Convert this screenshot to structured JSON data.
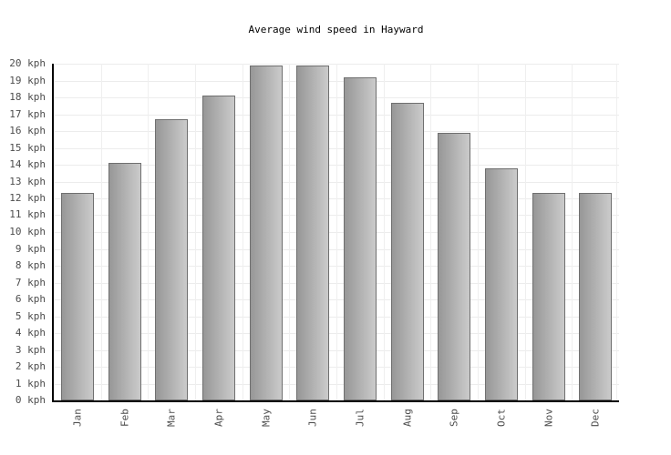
{
  "title": "Average wind speed in Hayward",
  "chart_data": {
    "type": "bar",
    "title": "Average wind speed in Hayward",
    "xlabel": "",
    "ylabel": "",
    "unit": "kph",
    "categories": [
      "Jan",
      "Feb",
      "Mar",
      "Apr",
      "May",
      "Jun",
      "Jul",
      "Aug",
      "Sep",
      "Oct",
      "Nov",
      "Dec"
    ],
    "values": [
      12.3,
      14.1,
      16.7,
      18.1,
      19.9,
      19.9,
      19.2,
      17.7,
      15.9,
      13.8,
      12.3,
      12.3
    ],
    "ylim": [
      0,
      20
    ],
    "ytick_step": 1,
    "yticks": [
      "0 kph",
      "1 kph",
      "2 kph",
      "3 kph",
      "4 kph",
      "5 kph",
      "6 kph",
      "7 kph",
      "8 kph",
      "9 kph",
      "10 kph",
      "11 kph",
      "12 kph",
      "13 kph",
      "14 kph",
      "15 kph",
      "16 kph",
      "17 kph",
      "18 kph",
      "19 kph",
      "20 kph"
    ],
    "grid": "on",
    "legend": "none",
    "x_label_rotation_deg": -90,
    "colors": {
      "background": "#ffffff",
      "bar_gradient_left": "#979797",
      "bar_gradient_right": "#cbcbcb",
      "bar_border": "#6f6f6f",
      "gridline_h": "#ececec",
      "gridline_v": "#efefef",
      "axis": "#000000",
      "tick_text": "#4d4d4d",
      "title_text": "#000000"
    }
  }
}
